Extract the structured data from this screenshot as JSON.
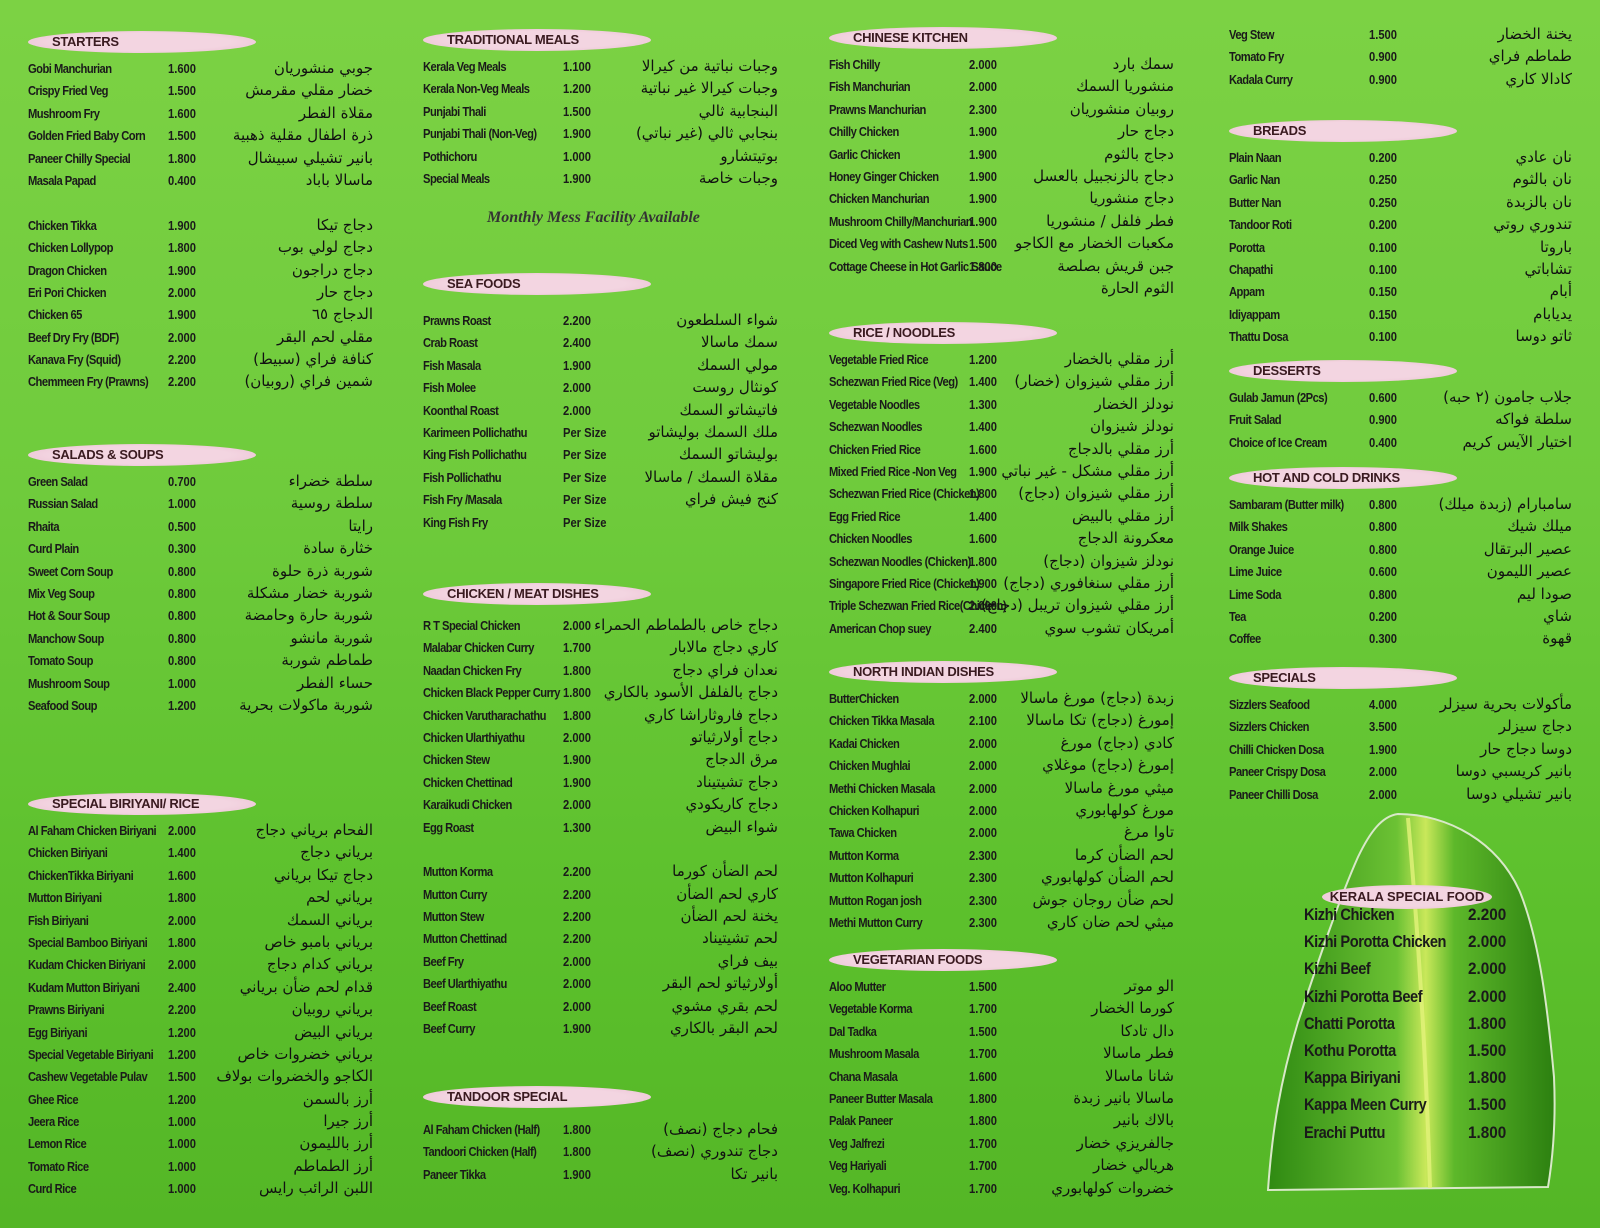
{
  "starters": {
    "title": "STARTERS",
    "items": [
      [
        "Gobi Manchurian",
        "1.600",
        "جوبي منشوريان"
      ],
      [
        "Crispy Fried Veg",
        "1.500",
        "خضار مقلي مقرمش"
      ],
      [
        "Mushroom Fry",
        "1.600",
        "مقلاة الفطر"
      ],
      [
        "Golden Fried Baby Corn",
        "1.500",
        "ذرة اطفال مقلية ذهبية"
      ],
      [
        "Paneer Chilly Special",
        "1.800",
        "بانير تشيلي سبيشال"
      ],
      [
        "Masala Papad",
        "0.400",
        "ماسالا باباد"
      ],
      [
        "",
        "",
        ""
      ],
      [
        "Chicken Tikka",
        "1.900",
        "دجاج تيكا"
      ],
      [
        "Chicken Lollypop",
        "1.800",
        "دجاج لولي بوب"
      ],
      [
        "Dragon Chicken",
        "1.900",
        "دجاج دراجون"
      ],
      [
        "Eri Pori Chicken",
        "2.000",
        "دجاج حار"
      ],
      [
        "Chicken 65",
        "1.900",
        "الدجاج ٦٥"
      ],
      [
        "Beef Dry Fry (BDF)",
        "2.000",
        "مقلي لحم البقر"
      ],
      [
        "Kanava Fry (Squid)",
        "2.200",
        "كنافة فراي (سبيط)"
      ],
      [
        "Chemmeen Fry (Prawns)",
        "2.200",
        "شمين فراي (روبيان)"
      ]
    ]
  },
  "salads": {
    "title": "SALADS & SOUPS",
    "items": [
      [
        "Green Salad",
        "0.700",
        "سلطة خضراء"
      ],
      [
        "Russian Salad",
        "1.000",
        "سلطة روسية"
      ],
      [
        "Rhaita",
        "0.500",
        "رايتا"
      ],
      [
        "Curd Plain",
        "0.300",
        "خثارة سادة"
      ],
      [
        "Sweet Corn Soup",
        "0.800",
        "شوربة ذرة حلوة"
      ],
      [
        "Mix Veg Soup",
        "0.800",
        "شوربة خضار مشكلة"
      ],
      [
        "Hot & Sour Soup",
        "0.800",
        "شوربة حارة وحامضة"
      ],
      [
        "Manchow Soup",
        "0.800",
        "شوربة مانشو"
      ],
      [
        "Tomato Soup",
        "0.800",
        "طماطم شوربة"
      ],
      [
        "Mushroom Soup",
        "1.000",
        "حساء الفطر"
      ],
      [
        "Seafood Soup",
        "1.200",
        "شوربة ماكولات بحرية"
      ]
    ]
  },
  "biriyani": {
    "title": "SPECIAL BIRIYANI/ RICE",
    "items": [
      [
        "Al Faham Chicken Biriyani",
        "2.000",
        "الفحام برياني دجاج"
      ],
      [
        "Chicken Biriyani",
        "1.400",
        "برياني دجاج"
      ],
      [
        "ChickenTikka Biriyani",
        "1.600",
        "دجاج تيكا برياني"
      ],
      [
        "Mutton Biriyani",
        "1.800",
        "برياني لحم"
      ],
      [
        "Fish Biriyani",
        "2.000",
        "برياني السمك"
      ],
      [
        "Special Bamboo Biriyani",
        "1.800",
        "برياني بامبو خاص"
      ],
      [
        "Kudam Chicken Biriyani",
        "2.000",
        "برياني كدام دجاج"
      ],
      [
        "Kudam Mutton Biriyani",
        "2.400",
        "قدام لحم ضأن برياني"
      ],
      [
        "Prawns Biriyani",
        "2.200",
        "برياني روبيان"
      ],
      [
        "Egg Biriyani",
        "1.200",
        "برياني البيض"
      ],
      [
        "Special Vegetable Biriyani",
        "1.200",
        "برياني خضروات خاص"
      ],
      [
        "Cashew Vegetable Pulav",
        "1.500",
        "الكاجو والخضروات بولاف"
      ],
      [
        "Ghee Rice",
        "1.200",
        "أرز بالسمن"
      ],
      [
        "Jeera Rice",
        "1.000",
        "أرز جيرا"
      ],
      [
        "Lemon Rice",
        "1.000",
        "أرز بالليمون"
      ],
      [
        "Tomato Rice",
        "1.000",
        "أرز الطماطم"
      ],
      [
        "Curd Rice",
        "1.000",
        "اللبن الرائب رايس"
      ]
    ]
  },
  "traditional": {
    "title": "TRADITIONAL MEALS",
    "items": [
      [
        "Kerala Veg Meals",
        "1.100",
        "وجبات نباتية من كيرالا"
      ],
      [
        "Kerala Non-Veg Meals",
        "1.200",
        "وجبات كيرالا غير نباتية"
      ],
      [
        "Punjabi Thali",
        "1.500",
        "البنجابية ثالي"
      ],
      [
        "Punjabi Thali (Non-Veg)",
        "1.900",
        "بنجابي ثالي (غير نباتي)"
      ],
      [
        "Pothichoru",
        "1.000",
        "بوتيتشارو"
      ],
      [
        "Special Meals",
        "1.900",
        "وجبات خاصة"
      ]
    ],
    "note": "Monthly Mess Facility Available"
  },
  "seafoods": {
    "title": "SEA FOODS",
    "items": [
      [
        "Prawns Roast",
        "2.200",
        "شواء السلطعون"
      ],
      [
        "Crab Roast",
        "2.400",
        "سمك ماسالا"
      ],
      [
        "Fish Masala",
        "1.900",
        "مولي السمك"
      ],
      [
        "Fish Molee",
        "2.000",
        "كونثال روست"
      ],
      [
        "Koonthal Roast",
        "2.000",
        "فاتيشاتو السمك"
      ],
      [
        "Karimeen Pollichathu",
        "Per Size",
        "ملك السمك بوليشاتو"
      ],
      [
        "King Fish Pollichathu",
        "Per Size",
        "بوليشاتو السمك"
      ],
      [
        "Fish Pollichathu",
        "Per Size",
        "مقلاة السمك / ماسالا"
      ],
      [
        "Fish Fry /Masala",
        "Per Size",
        "كنج فيش فراي"
      ],
      [
        "King Fish Fry",
        "Per Size",
        ""
      ]
    ]
  },
  "chickenmeat": {
    "title": "CHICKEN / MEAT DISHES",
    "items": [
      [
        "R T Special Chicken",
        "2.000",
        "دجاج خاص بالطماطم الحمراء"
      ],
      [
        "Malabar Chicken Curry",
        "1.700",
        "كاري دجاج مالابار"
      ],
      [
        "Naadan Chicken Fry",
        "1.800",
        "نعدان فراي دجاج"
      ],
      [
        "Chicken Black Pepper Curry",
        "1.800",
        "دجاج بالفلفل الأسود بالكاري"
      ],
      [
        "Chicken Varutharachathu",
        "1.800",
        "دجاج فاروثاراشا كاري"
      ],
      [
        "Chicken Ularthiyathu",
        "2.000",
        "دجاج أولارثياتو"
      ],
      [
        "Chicken Stew",
        "1.900",
        "مرق الدجاج"
      ],
      [
        "Chicken Chettinad",
        "1.900",
        "دجاج تشيتيناد"
      ],
      [
        "Karaikudi Chicken",
        "2.000",
        "دجاج كاريكودي"
      ],
      [
        "Egg Roast",
        "1.300",
        "شواء البيض"
      ],
      [
        "",
        "",
        ""
      ],
      [
        "Mutton Korma",
        "2.200",
        "لحم الضأن كورما"
      ],
      [
        "Mutton Curry",
        "2.200",
        "كاري لحم الضأن"
      ],
      [
        "Mutton Stew",
        "2.200",
        "يخنة لحم الضأن"
      ],
      [
        "Mutton Chettinad",
        "2.200",
        "لحم تشيتيناد"
      ],
      [
        "Beef Fry",
        "2.000",
        "بيف فراي"
      ],
      [
        "Beef Ularthiyathu",
        "2.000",
        "أولارثياتو لحم البقر"
      ],
      [
        "Beef Roast",
        "2.000",
        "لحم بقري مشوي"
      ],
      [
        "Beef Curry",
        "1.900",
        "لحم البقر بالكاري"
      ]
    ]
  },
  "tandoor": {
    "title": "TANDOOR SPECIAL",
    "items": [
      [
        "Al Faham Chicken (Half)",
        "1.800",
        "فحام دجاج (نصف)"
      ],
      [
        "Tandoori Chicken (Half)",
        "1.800",
        "دجاج تندوري (نصف)"
      ],
      [
        "Paneer Tikka",
        "1.900",
        "بانير تكا"
      ]
    ]
  },
  "chinese": {
    "title": "CHINESE KITCHEN",
    "items": [
      [
        "Fish Chilly",
        "2.000",
        "سمك بارد"
      ],
      [
        "Fish Manchurian",
        "2.000",
        "منشوريا السمك"
      ],
      [
        "Prawns Manchurian",
        "2.300",
        "روبيان منشوريان"
      ],
      [
        "Chilly Chicken",
        "1.900",
        "دجاج حار"
      ],
      [
        "Garlic Chicken",
        "1.900",
        "دجاج بالثوم"
      ],
      [
        "Honey Ginger Chicken",
        "1.900",
        "دجاج بالزنجبيل بالعسل"
      ],
      [
        "Chicken Manchurian",
        "1.900",
        "دجاج منشوريا"
      ],
      [
        "Mushroom Chilly/Manchurian",
        "1.900",
        "فطر فلفل / منشوريا"
      ],
      [
        "Diced Veg with Cashew Nuts",
        "1.500",
        "مكعبات الخضار مع الكاجو"
      ],
      [
        "Cottage Cheese in Hot Garlic Sauce",
        "1.800",
        "جبن قريش بصلصة"
      ],
      [
        "",
        "",
        "الثوم الحارة"
      ]
    ]
  },
  "rice": {
    "title": "RICE / NOODLES",
    "items": [
      [
        "Vegetable Fried Rice",
        "1.200",
        "أرز مقلي بالخضار"
      ],
      [
        "Schezwan Fried Rice (Veg)",
        "1.400",
        "أرز مقلي شيزوان (خضار)"
      ],
      [
        "Vegetable Noodles",
        "1.300",
        "نودلز الخضار"
      ],
      [
        "Schezwan Noodles",
        "1.400",
        "نودلز شيزوان"
      ],
      [
        "Chicken Fried Rice",
        "1.600",
        "أرز مقلي بالدجاج"
      ],
      [
        "Mixed Fried Rice -Non Veg",
        "1.900",
        "أرز مقلي مشكل - غير نباتي"
      ],
      [
        "Schezwan Fried Rice (Chicken)",
        "1.800",
        "أرز مقلي شيزوان (دجاج)"
      ],
      [
        "Egg Fried Rice",
        "1.400",
        "أرز مقلي بالبيض"
      ],
      [
        "Chicken Noodles",
        "1.600",
        "معكرونة الدجاج"
      ],
      [
        "Schezwan Noodles (Chicken)",
        "1.800",
        "نودلز شيزوان (دجاج)"
      ],
      [
        "Singapore Fried Rice (Chicken)",
        "1.900",
        "أرز مقلي سنغافوري (دجاج)"
      ],
      [
        "Triple Schezwan Fried Rice(Chicken)",
        "2.000",
        "أرز مقلي شيزوان تريبل (دجاج)"
      ],
      [
        "American Chop suey",
        "2.400",
        "أمريكان تشوب سوي"
      ]
    ]
  },
  "northindian": {
    "title": "NORTH INDIAN DISHES",
    "items": [
      [
        "ButterChicken",
        "2.000",
        "زبدة (دجاج) مورغ ماسالا"
      ],
      [
        "Chicken Tikka Masala",
        "2.100",
        "إمورغ (دجاج) تكا ماسالا"
      ],
      [
        "Kadai Chicken",
        "2.000",
        "كادي (دجاج) مورغ"
      ],
      [
        "Chicken Mughlai",
        "2.000",
        "إمورغ (دجاج) موغلاي"
      ],
      [
        "Methi Chicken Masala",
        "2.000",
        "ميثي مورغ ماسالا"
      ],
      [
        "Chicken Kolhapuri",
        "2.000",
        "مورغ كولهابوري"
      ],
      [
        "Tawa Chicken",
        "2.000",
        "تاوا مرغ"
      ],
      [
        "Mutton Korma",
        "2.300",
        "لحم الضأن كرما"
      ],
      [
        "Mutton Kolhapuri",
        "2.300",
        "لحم الضأن كولهابوري"
      ],
      [
        "Mutton Rogan josh",
        "2.300",
        "لحم ضأن روجان جوش"
      ],
      [
        "Methi Mutton Curry",
        "2.300",
        "ميثي لحم ضان كاري"
      ]
    ]
  },
  "vegetarian": {
    "title": "VEGETARIAN FOODS",
    "items": [
      [
        "Aloo Mutter",
        "1.500",
        "الو موتر"
      ],
      [
        "Vegetable Korma",
        "1.700",
        "كورما الخضار"
      ],
      [
        "Dal Tadka",
        "1.500",
        "دال تادكا"
      ],
      [
        "Mushroom Masala",
        "1.700",
        "فطر ماسالا"
      ],
      [
        "Chana Masala",
        "1.600",
        "شانا ماسالا"
      ],
      [
        "Paneer Butter Masala",
        "1.800",
        "ماسالا بانير زبدة"
      ],
      [
        "Palak Paneer",
        "1.800",
        "بالاك بانير"
      ],
      [
        "Veg Jalfrezi",
        "1.700",
        "جالفريزي خضار"
      ],
      [
        "Veg Hariyali",
        "1.700",
        "هريالي خضار"
      ],
      [
        "Veg. Kolhapuri",
        "1.700",
        "خضروات كولهابوري"
      ]
    ]
  },
  "vegtop": {
    "items": [
      [
        "Veg Stew",
        "1.500",
        "يخنة الخضار"
      ],
      [
        "Tomato Fry",
        "0.900",
        "طماطم فراي"
      ],
      [
        "Kadala Curry",
        "0.900",
        "كادالا كاري"
      ]
    ]
  },
  "breads": {
    "title": "BREADS",
    "items": [
      [
        "Plain Naan",
        "0.200",
        "نان عادي"
      ],
      [
        "Garlic Nan",
        "0.250",
        "نان بالثوم"
      ],
      [
        "Butter Nan",
        "0.250",
        "نان بالزبدة"
      ],
      [
        "Tandoor Roti",
        "0.200",
        "تندوري روتي"
      ],
      [
        "Porotta",
        "0.100",
        "باروتا"
      ],
      [
        "Chapathi",
        "0.100",
        "تشاباتي"
      ],
      [
        "Appam",
        "0.150",
        "أبام"
      ],
      [
        "Idiyappam",
        "0.150",
        "يديابام"
      ],
      [
        "Thattu Dosa",
        "0.100",
        "ثاتو دوسا"
      ]
    ]
  },
  "desserts": {
    "title": "DESSERTS",
    "items": [
      [
        "Gulab Jamun (2Pcs)",
        "0.600",
        "جلاب جامون (٢ حبه)"
      ],
      [
        "Fruit Salad",
        "0.900",
        "سلطة فواكه"
      ],
      [
        "Choice of Ice Cream",
        "0.400",
        "اختيار الآيس كريم"
      ]
    ]
  },
  "drinks": {
    "title": "HOT AND COLD DRINKS",
    "items": [
      [
        "Sambaram (Butter milk)",
        "0.800",
        "سامبارام (زبدة ميلك)"
      ],
      [
        "Milk Shakes",
        "0.800",
        "ميلك شيك"
      ],
      [
        "Orange Juice",
        "0.800",
        "عصير البرتقال"
      ],
      [
        "Lime Juice",
        "0.600",
        "عصير الليمون"
      ],
      [
        "Lime Soda",
        "0.800",
        "صودا ليم"
      ],
      [
        "Tea",
        "0.200",
        "شاي"
      ],
      [
        "Coffee",
        "0.300",
        "قهوة"
      ]
    ]
  },
  "specials": {
    "title": "SPECIALS",
    "items": [
      [
        "Sizzlers Seafood",
        "4.000",
        "مأكولات بحرية سيزلر"
      ],
      [
        "Sizzlers Chicken",
        "3.500",
        "دجاج سيزلر"
      ],
      [
        "Chilli Chicken Dosa",
        "1.900",
        "دوسا دجاج حار"
      ],
      [
        "Paneer Crispy Dosa",
        "2.000",
        "بانير كريسبي دوسا"
      ],
      [
        "Paneer Chilli Dosa",
        "2.000",
        "بانير تشيلي دوسا"
      ]
    ]
  },
  "kerala": {
    "title": "KERALA SPECIAL FOOD",
    "items": [
      [
        "Kizhi Chicken",
        "2.200"
      ],
      [
        "Kizhi Porotta Chicken",
        "2.000"
      ],
      [
        "Kizhi Beef",
        "2.000"
      ],
      [
        "Kizhi Porotta Beef",
        "2.000"
      ],
      [
        "Chatti Porotta",
        "1.800"
      ],
      [
        "Kothu Porotta",
        "1.500"
      ],
      [
        "Kappa Biriyani",
        "1.800"
      ],
      [
        "Kappa Meen Curry",
        "1.500"
      ],
      [
        "Erachi Puttu",
        "1.800"
      ]
    ]
  },
  "colors": {
    "background": "#6fcb3c",
    "pill": "#f3d5e1",
    "leaf": "#3e9a1a"
  }
}
